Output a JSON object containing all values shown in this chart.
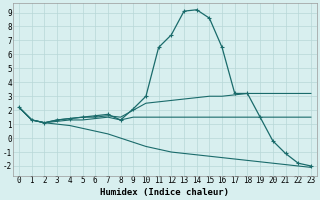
{
  "xlabel": "Humidex (Indice chaleur)",
  "background_color": "#d8efef",
  "grid_color": "#b8d8d8",
  "line_color": "#1a6b6b",
  "xlim": [
    -0.5,
    23.5
  ],
  "ylim": [
    -2.7,
    9.7
  ],
  "x_ticks": [
    0,
    1,
    2,
    3,
    4,
    5,
    6,
    7,
    8,
    9,
    10,
    11,
    12,
    13,
    14,
    15,
    16,
    17,
    18,
    19,
    20,
    21,
    22,
    23
  ],
  "y_ticks": [
    -2,
    -1,
    0,
    1,
    2,
    3,
    4,
    5,
    6,
    7,
    8,
    9
  ],
  "series": {
    "line1": {
      "x": [
        0,
        1,
        2,
        3,
        4,
        5,
        6,
        7,
        8,
        9,
        10,
        11,
        12,
        13,
        14,
        15,
        16,
        17,
        18,
        19,
        20,
        21,
        22,
        23
      ],
      "y": [
        2.2,
        1.3,
        1.1,
        1.3,
        1.4,
        1.5,
        1.6,
        1.7,
        1.3,
        2.1,
        3.0,
        6.5,
        7.4,
        9.1,
        9.2,
        8.6,
        6.5,
        3.2,
        3.2,
        1.5,
        -0.2,
        -1.1,
        -1.8,
        -2.0
      ],
      "marker": true
    },
    "line2": {
      "x": [
        0,
        1,
        2,
        3,
        4,
        5,
        6,
        7,
        8,
        9,
        10,
        11,
        12,
        13,
        14,
        15,
        16,
        17,
        18,
        19,
        20,
        21,
        22,
        23
      ],
      "y": [
        2.2,
        1.3,
        1.1,
        1.3,
        1.4,
        1.5,
        1.5,
        1.6,
        1.5,
        2.0,
        2.5,
        2.6,
        2.7,
        2.8,
        2.9,
        3.0,
        3.0,
        3.1,
        3.2,
        3.2,
        3.2,
        3.2,
        3.2,
        3.2
      ],
      "marker": false
    },
    "line3": {
      "x": [
        0,
        1,
        2,
        3,
        4,
        5,
        6,
        7,
        8,
        9,
        10,
        11,
        12,
        13,
        14,
        15,
        16,
        17,
        18,
        19,
        20,
        21,
        22,
        23
      ],
      "y": [
        2.2,
        1.3,
        1.1,
        1.2,
        1.3,
        1.3,
        1.4,
        1.5,
        1.3,
        1.5,
        1.5,
        1.5,
        1.5,
        1.5,
        1.5,
        1.5,
        1.5,
        1.5,
        1.5,
        1.5,
        1.5,
        1.5,
        1.5,
        1.5
      ],
      "marker": false
    },
    "line4": {
      "x": [
        0,
        1,
        2,
        3,
        4,
        5,
        6,
        7,
        8,
        9,
        10,
        11,
        12,
        13,
        14,
        15,
        16,
        17,
        18,
        19,
        20,
        21,
        22,
        23
      ],
      "y": [
        2.2,
        1.3,
        1.1,
        1.0,
        0.9,
        0.7,
        0.5,
        0.3,
        0.0,
        -0.3,
        -0.6,
        -0.8,
        -1.0,
        -1.1,
        -1.2,
        -1.3,
        -1.4,
        -1.5,
        -1.6,
        -1.7,
        -1.8,
        -1.9,
        -2.0,
        -2.1
      ],
      "marker": false
    }
  }
}
